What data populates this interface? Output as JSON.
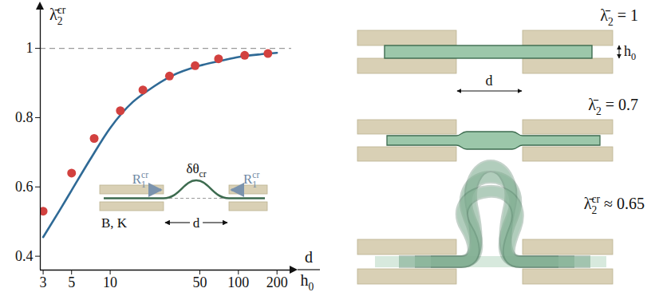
{
  "chart_data": {
    "type": "line",
    "y_label": {
      "base": "λ̄",
      "sub": "2",
      "sup": "cr"
    },
    "x_label": {
      "numerator": "d",
      "denominator": {
        "base": "h",
        "sub": "0"
      }
    },
    "log": "x",
    "grid": false,
    "xlim": [
      2.85,
      260
    ],
    "xticks": [
      3,
      5,
      10,
      50,
      100,
      200
    ],
    "ylim": [
      0.36,
      1.12
    ],
    "yticks": [
      0.4,
      0.6,
      0.8,
      1
    ],
    "series": [
      {
        "type": "line",
        "color": "#2f6a96",
        "line_style": "solid",
        "x": [
          3,
          4,
          5,
          7,
          10,
          15,
          20,
          30,
          50,
          75,
          100,
          150,
          200
        ],
        "values": [
          0.455,
          0.53,
          0.59,
          0.68,
          0.77,
          0.845,
          0.88,
          0.92,
          0.95,
          0.965,
          0.975,
          0.983,
          0.987
        ]
      },
      {
        "type": "scatter",
        "color": "#d2413f",
        "marker": "circle",
        "x": [
          3,
          5,
          7.5,
          12,
          18,
          29,
          46,
          70,
          112,
          170
        ],
        "values": [
          0.53,
          0.64,
          0.74,
          0.82,
          0.88,
          0.92,
          0.95,
          0.97,
          0.98,
          0.985
        ]
      }
    ],
    "reference_lines": [
      {
        "y": 1,
        "line_style": "dashed",
        "color": "#9a9a9a"
      }
    ],
    "inset": {
      "force_labels": [
        {
          "base": "R",
          "sub": "1",
          "sup": "cr"
        },
        {
          "base": "R",
          "sub": "1",
          "sup": "cr"
        }
      ],
      "angle_label": {
        "base": "δθ",
        "sub": "cr"
      },
      "stiffness_label": "B, K",
      "gap_label": "d"
    }
  },
  "diagrams": [
    {
      "label": {
        "base": "λ̄",
        "sub": "2",
        "suffix": " = 1"
      },
      "thickness_label": {
        "base": "h",
        "sub": "0"
      },
      "gap_label": "d"
    },
    {
      "label": {
        "base": "λ̄",
        "sub": "2",
        "suffix": " = 0.7"
      }
    },
    {
      "label": {
        "base": "λ̄",
        "sub": "2",
        "sup": "cr",
        "suffix": " ≈ 0.65"
      }
    }
  ]
}
